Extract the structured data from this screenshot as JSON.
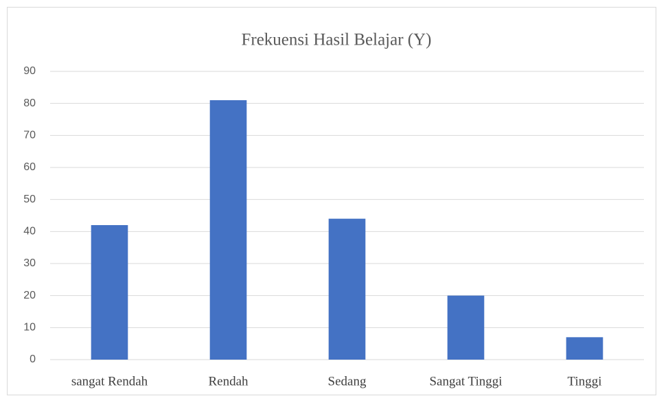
{
  "chart_data": {
    "type": "bar",
    "title": "Frekuensi Hasil Belajar (Y)",
    "categories": [
      "sangat Rendah",
      "Rendah",
      "Sedang",
      "Sangat Tinggi",
      "Tinggi"
    ],
    "values": [
      42,
      81,
      44,
      20,
      7
    ],
    "color": "#4472c4",
    "ylim": [
      0,
      90
    ],
    "yticks": [
      0,
      10,
      20,
      30,
      40,
      50,
      60,
      70,
      80,
      90
    ],
    "grid": true
  }
}
